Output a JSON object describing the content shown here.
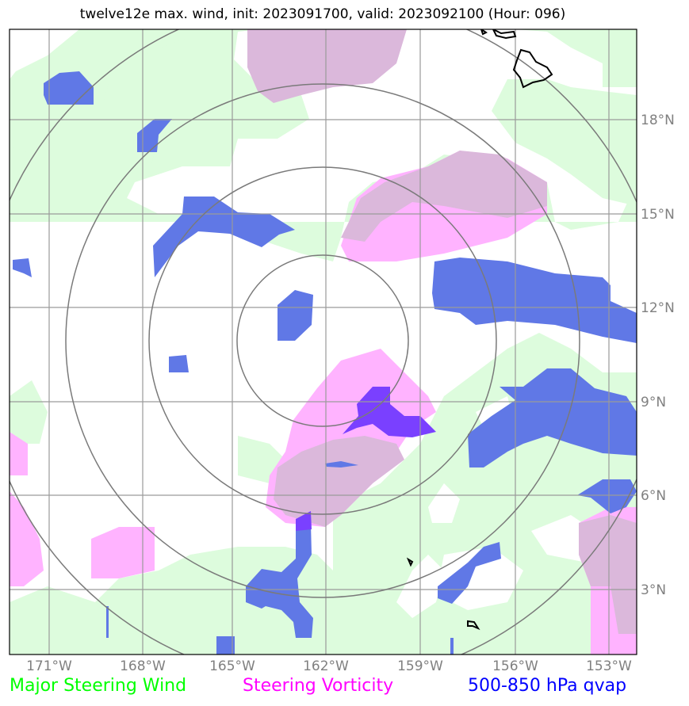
{
  "title": "twelve12e max. wind, init: 2023091700, valid: 2023092100 (Hour: 096)",
  "legend": [
    {
      "label": "Major Steering Wind",
      "color": "#00ff00"
    },
    {
      "label": "Steering Vorticity",
      "color": "#ff00ff"
    },
    {
      "label": "500-850 hPa qvap",
      "color": "#0000ff"
    }
  ],
  "lon_ticks": [
    "171°W",
    "168°W",
    "165°W",
    "162°W",
    "159°W",
    "156°W",
    "153°W"
  ],
  "lat_ticks": [
    "18°N",
    "15°N",
    "12°N",
    "9°N",
    "6°N",
    "3°N"
  ],
  "colors": {
    "wind": "#ddfcdd",
    "vorticity": "#ffb3ff",
    "overlap": "#dbb8db",
    "qvap": "#6078e6",
    "qvap_alt": "#7a7aff",
    "qvap_dark": "#7a40ff",
    "grid": "#9a9a9a",
    "ring": "#7a7a7a",
    "coast": "#000000"
  }
}
